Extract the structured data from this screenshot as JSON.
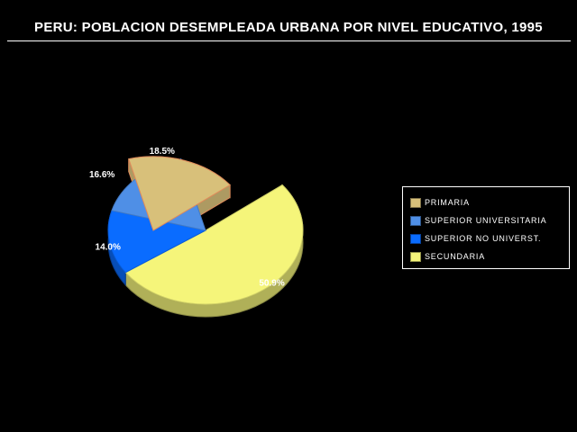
{
  "title": "PERU: POBLACION DESEMPLEADA URBANA POR NIVEL EDUCATIVO, 1995",
  "chart_data": {
    "type": "pie",
    "title": "PERU: POBLACION DESEMPLEADA URBANA POR NIVEL EDUCATIVO, 1995",
    "legend_position": "right",
    "exploded": [
      "PRIMARIA"
    ],
    "slices": [
      {
        "label": "SECUNDARIA",
        "value": 50.9,
        "value_label": "50.9%",
        "color": "#f5f57a"
      },
      {
        "label": "SUPERIOR NO UNIVERST.",
        "value": 14.0,
        "value_label": "14.0%",
        "color": "#0a6cff"
      },
      {
        "label": "SUPERIOR UNIVERSITARIA",
        "value": 16.6,
        "value_label": "16.6%",
        "color": "#4f8fe6"
      },
      {
        "label": "PRIMARIA",
        "value": 18.5,
        "value_label": "18.5%",
        "color": "#d8c07a"
      }
    ],
    "legend": [
      {
        "label": "PRIMARIA",
        "color": "#d8c07a"
      },
      {
        "label": "SUPERIOR UNIVERSITARIA",
        "color": "#4f8fe6"
      },
      {
        "label": "SUPERIOR NO UNIVERST.",
        "color": "#0a6cff"
      },
      {
        "label": "SECUNDARIA",
        "color": "#f5f57a"
      }
    ]
  }
}
